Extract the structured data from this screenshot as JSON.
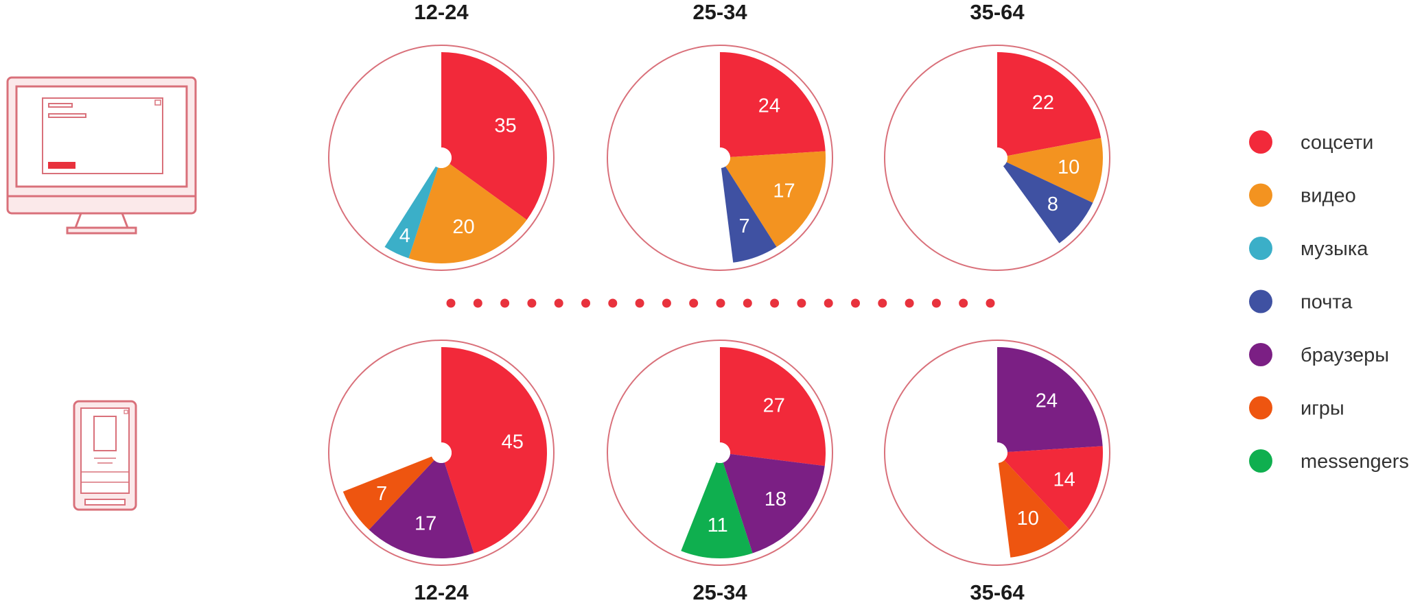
{
  "chart_data": {
    "type": "pie",
    "charts": [
      {
        "device": "desktop",
        "title": "12-24",
        "slices": [
          {
            "category": "соцсети",
            "value": 35
          },
          {
            "category": "видео",
            "value": 20
          },
          {
            "category": "музыка",
            "value": 4
          }
        ]
      },
      {
        "device": "desktop",
        "title": "25-34",
        "slices": [
          {
            "category": "соцсети",
            "value": 24
          },
          {
            "category": "видео",
            "value": 17
          },
          {
            "category": "почта",
            "value": 7
          }
        ]
      },
      {
        "device": "desktop",
        "title": "35-64",
        "slices": [
          {
            "category": "соцсети",
            "value": 22
          },
          {
            "category": "видео",
            "value": 10
          },
          {
            "category": "почта",
            "value": 8
          }
        ]
      },
      {
        "device": "mobile",
        "title": "12-24",
        "slices": [
          {
            "category": "соцсети",
            "value": 45
          },
          {
            "category": "браузеры",
            "value": 17
          },
          {
            "category": "игры",
            "value": 7
          }
        ]
      },
      {
        "device": "mobile",
        "title": "25-34",
        "slices": [
          {
            "category": "соцсети",
            "value": 27
          },
          {
            "category": "браузеры",
            "value": 18
          },
          {
            "category": "messengers",
            "value": 11
          }
        ]
      },
      {
        "device": "mobile",
        "title": "35-64",
        "slices": [
          {
            "category": "браузеры",
            "value": 24
          },
          {
            "category": "соцсети",
            "value": 14
          },
          {
            "category": "игры",
            "value": 10
          }
        ]
      }
    ],
    "scale_max": 100,
    "start_angle": "12 o'clock",
    "direction": "clockwise",
    "legend": {
      "position": "right",
      "items": [
        {
          "label": "соцсети",
          "color": "#f2293a"
        },
        {
          "label": "видео",
          "color": "#f39320"
        },
        {
          "label": "музыка",
          "color": "#3bafc8"
        },
        {
          "label": "почта",
          "color": "#3f51a2"
        },
        {
          "label": "браузеры",
          "color": "#7b1f84"
        },
        {
          "label": "игры",
          "color": "#ee5510"
        },
        {
          "label": "messengers",
          "color": "#0faf4f"
        }
      ]
    }
  },
  "icons": {
    "desktop": "desktop-monitor-icon",
    "mobile": "mobile-phone-icon"
  },
  "colors": {
    "accent": "#e8323d",
    "outline": "#d9707a",
    "dots": "#e8323d"
  }
}
